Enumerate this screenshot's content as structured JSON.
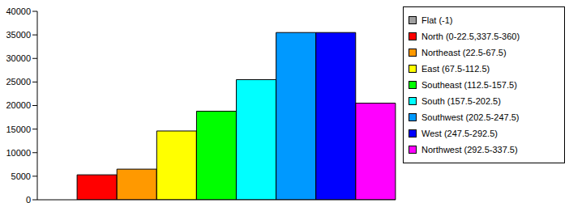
{
  "chart_data": {
    "type": "bar",
    "categories": [
      "Flat (-1)",
      "North (0-22.5,337.5-360)",
      "Northeast (22.5-67.5)",
      "East (67.5-112.5)",
      "Southeast (112.5-157.5)",
      "South (157.5-202.5)",
      "Southwest (202.5-247.5)",
      "West (247.5-292.5)",
      "Northwest (292.5-337.5)"
    ],
    "values": [
      0,
      5300,
      6500,
      14600,
      18800,
      25500,
      35500,
      35500,
      20500
    ],
    "colors": [
      "#a0a0a0",
      "#ff0000",
      "#ff9900",
      "#ffff00",
      "#00ff00",
      "#00ffff",
      "#0099ff",
      "#0000ff",
      "#ff00ff"
    ],
    "ylim": [
      0,
      40000
    ],
    "yticks": [
      0,
      5000,
      10000,
      15000,
      20000,
      25000,
      30000,
      35000,
      40000
    ],
    "grid": false,
    "legend": "right",
    "tick_labels": "y"
  }
}
